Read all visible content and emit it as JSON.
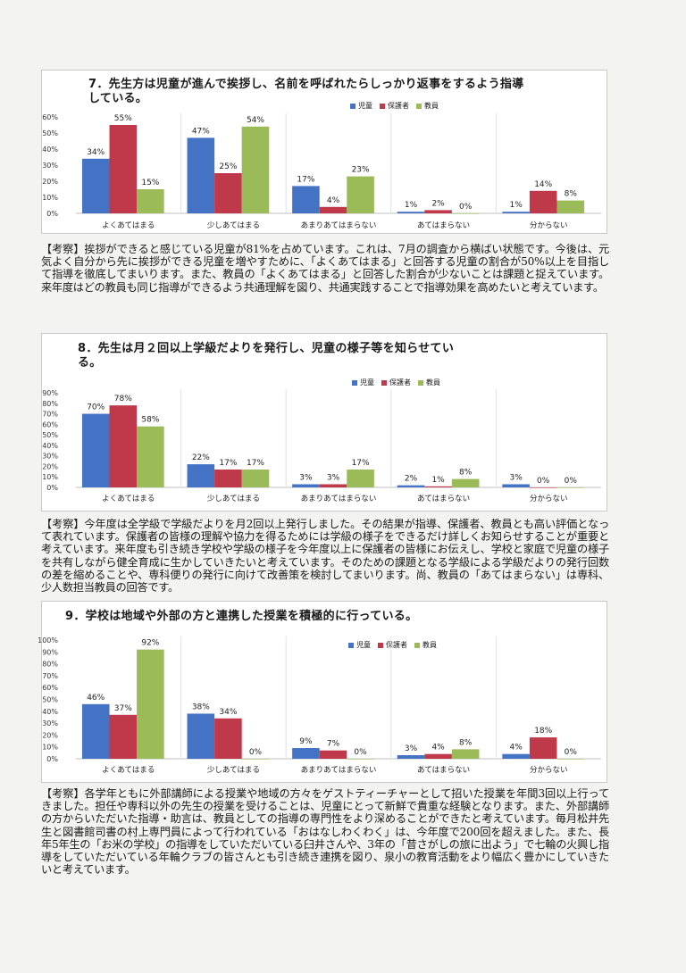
{
  "legend": {
    "series_colors": [
      "#4472c4",
      "#c0394a",
      "#9bbb59"
    ]
  },
  "chart_data": [
    {
      "type": "bar",
      "title": "7．先生方は児童が進んで挨拶し、名前を呼ばれたらしっかり返事をするよう指導している。",
      "title_lines": [
        "7．先生方は児童が進んで挨拶し、名前を呼ばれたらしっかり返事をするよう指導",
        "している。"
      ],
      "categories": [
        "よくあてはまる",
        "少しあてはまる",
        "あまりあてはまらない",
        "あてはまらない",
        "分からない"
      ],
      "series": [
        {
          "name": "児童",
          "values": [
            34,
            47,
            17,
            1,
            1
          ],
          "labels": [
            "34%",
            "47%",
            "17%",
            "1%",
            "1%"
          ]
        },
        {
          "name": "保護者",
          "values": [
            55,
            25,
            4,
            2,
            14
          ],
          "labels": [
            "55%",
            "25%",
            "4%",
            "2%",
            "14%"
          ]
        },
        {
          "name": "教員",
          "values": [
            15,
            54,
            23,
            0,
            8
          ],
          "labels": [
            "15%",
            "54%",
            "23%",
            "0%",
            "8%"
          ]
        }
      ],
      "yticks": [
        "0%",
        "10%",
        "20%",
        "30%",
        "40%",
        "50%",
        "60%"
      ],
      "ylim": [
        0,
        60
      ],
      "grid": false,
      "legend_position": "top-right"
    },
    {
      "type": "bar",
      "title": "8．先生は月２回以上学級だよりを発行し、児童の様子等を知らせている。",
      "title_lines": [
        "8．先生は月２回以上学級だよりを発行し、児童の様子等を知らせてい",
        "る。"
      ],
      "categories": [
        "よくあてはまる",
        "少しあてはまる",
        "あまりあてはまらない",
        "あてはまらない",
        "分からない"
      ],
      "series": [
        {
          "name": "児童",
          "values": [
            70,
            22,
            3,
            2,
            3
          ],
          "labels": [
            "70%",
            "22%",
            "3%",
            "2%",
            "3%"
          ]
        },
        {
          "name": "保護者",
          "values": [
            78,
            17,
            3,
            1,
            0
          ],
          "labels": [
            "78%",
            "17%",
            "3%",
            "1%",
            "0%"
          ]
        },
        {
          "name": "教員",
          "values": [
            58,
            17,
            17,
            8,
            0
          ],
          "labels": [
            "58%",
            "17%",
            "17%",
            "8%",
            "0%"
          ]
        }
      ],
      "yticks": [
        "0%",
        "10%",
        "20%",
        "30%",
        "40%",
        "50%",
        "60%",
        "70%",
        "80%",
        "90%"
      ],
      "ylim": [
        0,
        90
      ],
      "grid": false,
      "legend_position": "top-right"
    },
    {
      "type": "bar",
      "title": "9．学校は地域や外部の方と連携した授業を積極的に行っている。",
      "title_lines": [
        "9．学校は地域や外部の方と連携した授業を積極的に行っている。"
      ],
      "categories": [
        "よくあてはまる",
        "少しあてはまる",
        "あまりあてはまらない",
        "あてはまらない",
        "分からない"
      ],
      "series": [
        {
          "name": "児童",
          "values": [
            46,
            38,
            9,
            3,
            4
          ],
          "labels": [
            "46%",
            "38%",
            "9%",
            "3%",
            "4%"
          ]
        },
        {
          "name": "保護者",
          "values": [
            37,
            34,
            7,
            4,
            18
          ],
          "labels": [
            "37%",
            "34%",
            "7%",
            "4%",
            "18%"
          ]
        },
        {
          "name": "教員",
          "values": [
            92,
            0,
            0,
            8,
            0
          ],
          "labels": [
            "92%",
            "0%",
            "0%",
            "8%",
            "0%"
          ]
        }
      ],
      "yticks": [
        "0%",
        "10%",
        "20%",
        "30%",
        "40%",
        "50%",
        "60%",
        "70%",
        "80%",
        "90%",
        "100%"
      ],
      "ylim": [
        0,
        100
      ],
      "grid": false,
      "legend_position": "top-right"
    }
  ],
  "comments": [
    {
      "head": "【考察】",
      "body": "挨拶ができると感じている児童が81%を占めています。これは、7月の調査から横ばい状態です。今後は、元気よく自分から先に挨拶ができる児童を増やすために、「よくあてはまる」と回答する児童の割合が50%以上を目指して指導を徹底してまいります。また、教員の「よくあてはまる」と回答した割合が少ないことは課題と捉えています。来年度はどの教員も同じ指導ができるよう共通理解を図り、共通実践することで指導効果を高めたいと考えています。"
    },
    {
      "head": "【考察】",
      "body": "今年度は全学級で学級だよりを月2回以上発行しました。その結果が指導、保護者、教員とも高い評価となって表れています。保護者の皆様の理解や協力を得るためには学級の様子をできるだけ詳しくお知らせすることが重要と考えています。来年度も引き続き学校や学級の様子を今年度以上に保護者の皆様にお伝えし、学校と家庭で児童の様子を共有しながら健全育成に生かしていきたいと考えています。そのための課題となる学級による学級だよりの発行回数の差を縮めることや、専科便りの発行に向けて改善策を検討してまいります。尚、教員の「あてはまらない」は専科、少人数担当教員の回答です。"
    },
    {
      "head": "【考察】",
      "body": "各学年ともに外部講師による授業や地域の方々をゲストティーチャーとして招いた授業を年間3回以上行ってきました。担任や専科以外の先生の授業を受けることは、児童にとって新鮮で貴重な経験となります。また、外部講師の方からいただいた指導・助言は、教員としての指導の専門性をより深めることができたと考えています。毎月松井先生と図書館司書の村上専門員によって行われている「おはなしわくわく」は、今年度で200回を超えました。また、長年5年生の「お米の学校」の指導をしていただいている臼井さんや、3年の「昔さがしの旅に出よう」で七輪の火興し指導をしていただいている年輪クラブの皆さんとも引き続き連携を図り、泉小の教育活動をより幅広く豊かにしていきたいと考えています。"
    }
  ]
}
